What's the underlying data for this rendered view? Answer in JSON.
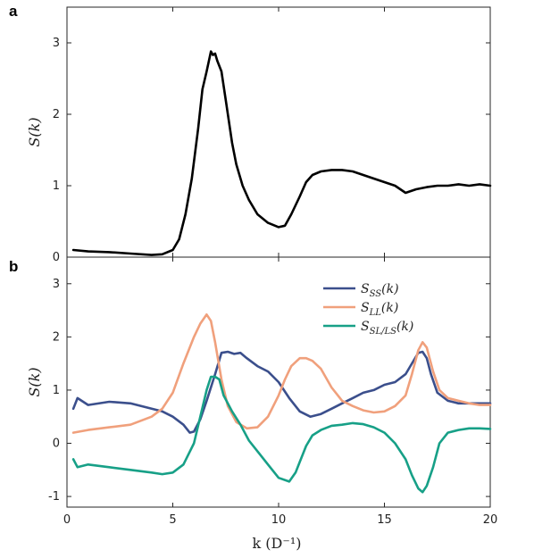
{
  "figure": {
    "panel_a_label": "a",
    "panel_b_label": "b",
    "ylabel": "S(k)",
    "xlabel": "k (D⁻¹)"
  },
  "chart_data": [
    {
      "type": "line",
      "panel": "a",
      "ylabel": "S(k)",
      "xlabel": "",
      "xlim": [
        0,
        20
      ],
      "ylim": [
        0,
        3.5
      ],
      "xticks": [
        0,
        5,
        10,
        15,
        20
      ],
      "yticks": [
        0,
        1,
        2,
        3
      ],
      "grid": false,
      "series": [
        {
          "color": "#000000",
          "x": [
            0.3,
            1,
            2,
            3,
            4,
            4.5,
            5.0,
            5.3,
            5.6,
            5.9,
            6.2,
            6.4,
            6.6,
            6.8,
            6.9,
            7.0,
            7.1,
            7.3,
            7.5,
            7.8,
            8.0,
            8.3,
            8.6,
            9.0,
            9.5,
            10.0,
            10.3,
            10.6,
            11.0,
            11.3,
            11.6,
            12.0,
            12.5,
            13.0,
            13.5,
            14.0,
            14.5,
            15.0,
            15.5,
            16.0,
            16.5,
            17.0,
            17.5,
            18.0,
            18.5,
            19.0,
            19.5,
            20.0
          ],
          "y": [
            0.1,
            0.08,
            0.07,
            0.05,
            0.03,
            0.04,
            0.1,
            0.25,
            0.6,
            1.1,
            1.8,
            2.35,
            2.6,
            2.88,
            2.83,
            2.85,
            2.75,
            2.6,
            2.2,
            1.6,
            1.3,
            1.0,
            0.8,
            0.6,
            0.48,
            0.42,
            0.44,
            0.6,
            0.85,
            1.05,
            1.15,
            1.2,
            1.22,
            1.22,
            1.2,
            1.15,
            1.1,
            1.05,
            1.0,
            0.9,
            0.95,
            0.98,
            1.0,
            1.0,
            1.02,
            1.0,
            1.02,
            1.0
          ]
        }
      ]
    },
    {
      "type": "line",
      "panel": "b",
      "ylabel": "S(k)",
      "xlabel": "k (D⁻¹)",
      "xlim": [
        0,
        20
      ],
      "ylim": [
        -1.2,
        3.5
      ],
      "xticks": [
        0,
        5,
        10,
        15,
        20
      ],
      "yticks": [
        -1,
        0,
        1,
        2,
        3
      ],
      "grid": false,
      "legend_position": "top-right",
      "series": [
        {
          "name": "S_SS(k)",
          "color": "#3b4f8c",
          "x": [
            0.3,
            0.5,
            1,
            2,
            3,
            4,
            4.5,
            5.0,
            5.5,
            5.8,
            6.0,
            6.3,
            6.6,
            7.0,
            7.3,
            7.6,
            7.9,
            8.2,
            8.5,
            9.0,
            9.5,
            10.0,
            10.5,
            11.0,
            11.5,
            12.0,
            12.5,
            13.0,
            13.5,
            14.0,
            14.5,
            15.0,
            15.5,
            16.0,
            16.3,
            16.6,
            16.8,
            17.0,
            17.2,
            17.5,
            18.0,
            18.5,
            19.0,
            19.5,
            20.0
          ],
          "y": [
            0.65,
            0.85,
            0.72,
            0.78,
            0.75,
            0.65,
            0.6,
            0.5,
            0.35,
            0.2,
            0.22,
            0.45,
            0.8,
            1.3,
            1.7,
            1.72,
            1.68,
            1.7,
            1.6,
            1.45,
            1.35,
            1.15,
            0.85,
            0.6,
            0.5,
            0.55,
            0.65,
            0.75,
            0.85,
            0.95,
            1.0,
            1.1,
            1.15,
            1.3,
            1.5,
            1.7,
            1.72,
            1.6,
            1.3,
            0.95,
            0.8,
            0.75,
            0.75,
            0.75,
            0.75
          ]
        },
        {
          "name": "S_LL(k)",
          "color": "#f0a07c",
          "x": [
            0.3,
            1,
            2,
            3,
            4,
            4.5,
            5.0,
            5.5,
            6.0,
            6.3,
            6.6,
            6.8,
            7.0,
            7.3,
            7.6,
            8.0,
            8.5,
            9.0,
            9.5,
            10.0,
            10.3,
            10.6,
            11.0,
            11.3,
            11.6,
            12.0,
            12.5,
            13.0,
            13.5,
            14.0,
            14.5,
            15.0,
            15.5,
            16.0,
            16.3,
            16.6,
            16.8,
            17.0,
            17.3,
            17.6,
            18.0,
            18.5,
            19.0,
            19.5,
            20.0
          ],
          "y": [
            0.2,
            0.25,
            0.3,
            0.35,
            0.5,
            0.65,
            0.95,
            1.5,
            2.0,
            2.25,
            2.42,
            2.3,
            1.9,
            1.2,
            0.7,
            0.4,
            0.28,
            0.3,
            0.5,
            0.9,
            1.2,
            1.45,
            1.6,
            1.6,
            1.55,
            1.4,
            1.05,
            0.8,
            0.7,
            0.62,
            0.58,
            0.6,
            0.7,
            0.9,
            1.3,
            1.75,
            1.9,
            1.8,
            1.35,
            1.0,
            0.85,
            0.8,
            0.75,
            0.72,
            0.72
          ]
        },
        {
          "name": "S_SL/LS(k)",
          "color": "#17a087",
          "x": [
            0.3,
            0.5,
            1,
            2,
            3,
            4,
            4.5,
            5.0,
            5.5,
            6.0,
            6.3,
            6.6,
            6.8,
            7.0,
            7.2,
            7.4,
            7.8,
            8.2,
            8.6,
            9.0,
            9.5,
            10.0,
            10.5,
            10.8,
            11.0,
            11.3,
            11.6,
            12.0,
            12.5,
            13.0,
            13.5,
            14.0,
            14.5,
            15.0,
            15.5,
            16.0,
            16.3,
            16.6,
            16.8,
            17.0,
            17.3,
            17.6,
            18.0,
            18.5,
            19.0,
            19.5,
            20.0
          ],
          "y": [
            -0.3,
            -0.45,
            -0.4,
            -0.45,
            -0.5,
            -0.55,
            -0.58,
            -0.55,
            -0.4,
            0.0,
            0.5,
            1.0,
            1.25,
            1.25,
            1.2,
            0.9,
            0.6,
            0.35,
            0.05,
            -0.15,
            -0.4,
            -0.65,
            -0.72,
            -0.55,
            -0.35,
            -0.05,
            0.15,
            0.25,
            0.33,
            0.35,
            0.38,
            0.36,
            0.3,
            0.2,
            0.0,
            -0.3,
            -0.6,
            -0.85,
            -0.92,
            -0.8,
            -0.45,
            0.0,
            0.2,
            0.25,
            0.28,
            0.28,
            0.27
          ]
        }
      ]
    }
  ]
}
